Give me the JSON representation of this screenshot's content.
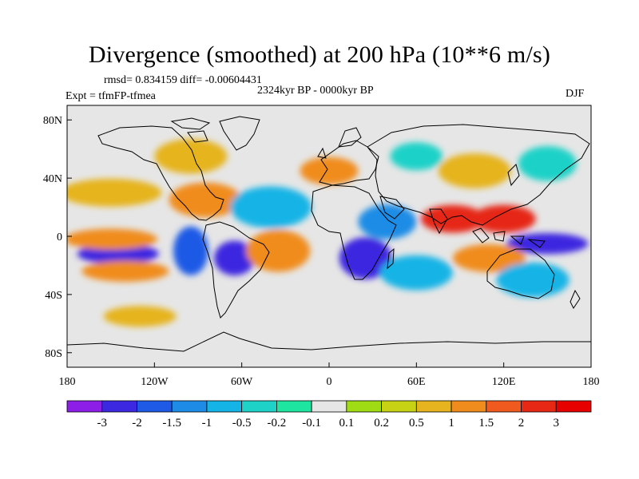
{
  "title": "Divergence (smoothed) at 200 hPa (10**6 m/s)",
  "stats": "rmsd= 0.834159 diff= -0.00604431",
  "period": "2324kyr BP - 0000kyr BP",
  "experiment": "Expt = tfmFP-tfmea",
  "season": "DJF",
  "lat_ticks": [
    "80N",
    "40N",
    "0",
    "40S",
    "80S"
  ],
  "lon_ticks": [
    "180",
    "120W",
    "60W",
    "0",
    "60E",
    "120E",
    "180"
  ],
  "colorbar": {
    "labels": [
      "-3",
      "-2",
      "-1.5",
      "-1",
      "-0.5",
      "-0.2",
      "-0.1",
      "0.1",
      "0.2",
      "0.5",
      "1",
      "1.5",
      "2",
      "3"
    ],
    "colors": [
      "#8c1ee8",
      "#3c28e0",
      "#1e5ae6",
      "#1e8ce6",
      "#14b4e6",
      "#1ed2c8",
      "#1ee6a0",
      "#e6e6e6",
      "#a0dc14",
      "#c8d214",
      "#e6b41e",
      "#f08c1e",
      "#f05a1e",
      "#e62814",
      "#e60000"
    ]
  },
  "colors": {
    "background_field": "#e6e6e6",
    "coastline": "#000000"
  },
  "chart_data": {
    "type": "heatmap",
    "variable": "200 hPa divergence difference (smoothed)",
    "units": "10**6 m/s",
    "x_range": [
      -180,
      180
    ],
    "y_range": [
      -90,
      90
    ],
    "anomalies": [
      {
        "lon": -145,
        "lat": -12,
        "value": -3,
        "rx": 28,
        "ry": 6
      },
      {
        "lon": -150,
        "lat": -2,
        "value": 1,
        "rx": 32,
        "ry": 6
      },
      {
        "lon": -140,
        "lat": -24,
        "value": 1,
        "rx": 30,
        "ry": 6
      },
      {
        "lon": -150,
        "lat": 30,
        "value": 0.5,
        "rx": 35,
        "ry": 8
      },
      {
        "lon": -95,
        "lat": -10,
        "value": -2,
        "rx": 12,
        "ry": 14
      },
      {
        "lon": -65,
        "lat": -15,
        "value": -3,
        "rx": 14,
        "ry": 10
      },
      {
        "lon": -85,
        "lat": 25,
        "value": 1,
        "rx": 25,
        "ry": 10
      },
      {
        "lon": -95,
        "lat": 55,
        "value": 0.5,
        "rx": 25,
        "ry": 10
      },
      {
        "lon": -40,
        "lat": 20,
        "value": -1,
        "rx": 28,
        "ry": 12
      },
      {
        "lon": -35,
        "lat": -10,
        "value": 1,
        "rx": 22,
        "ry": 12
      },
      {
        "lon": 25,
        "lat": -15,
        "value": -3,
        "rx": 18,
        "ry": 12
      },
      {
        "lon": 40,
        "lat": 10,
        "value": -1.5,
        "rx": 20,
        "ry": 10
      },
      {
        "lon": 85,
        "lat": 12,
        "value": 2,
        "rx": 22,
        "ry": 8
      },
      {
        "lon": 120,
        "lat": 12,
        "value": 2,
        "rx": 22,
        "ry": 8
      },
      {
        "lon": 150,
        "lat": -5,
        "value": -3,
        "rx": 28,
        "ry": 6
      },
      {
        "lon": 110,
        "lat": -15,
        "value": 1,
        "rx": 25,
        "ry": 8
      },
      {
        "lon": 60,
        "lat": -25,
        "value": -1,
        "rx": 25,
        "ry": 10
      },
      {
        "lon": 140,
        "lat": -30,
        "value": -1,
        "rx": 25,
        "ry": 10
      },
      {
        "lon": 100,
        "lat": 45,
        "value": 0.5,
        "rx": 25,
        "ry": 10
      },
      {
        "lon": 150,
        "lat": 50,
        "value": -0.5,
        "rx": 20,
        "ry": 10
      },
      {
        "lon": -130,
        "lat": -55,
        "value": 0.5,
        "rx": 25,
        "ry": 6
      },
      {
        "lon": 60,
        "lat": 55,
        "value": -0.5,
        "rx": 18,
        "ry": 8
      },
      {
        "lon": 0,
        "lat": 45,
        "value": 1,
        "rx": 20,
        "ry": 8
      }
    ]
  }
}
